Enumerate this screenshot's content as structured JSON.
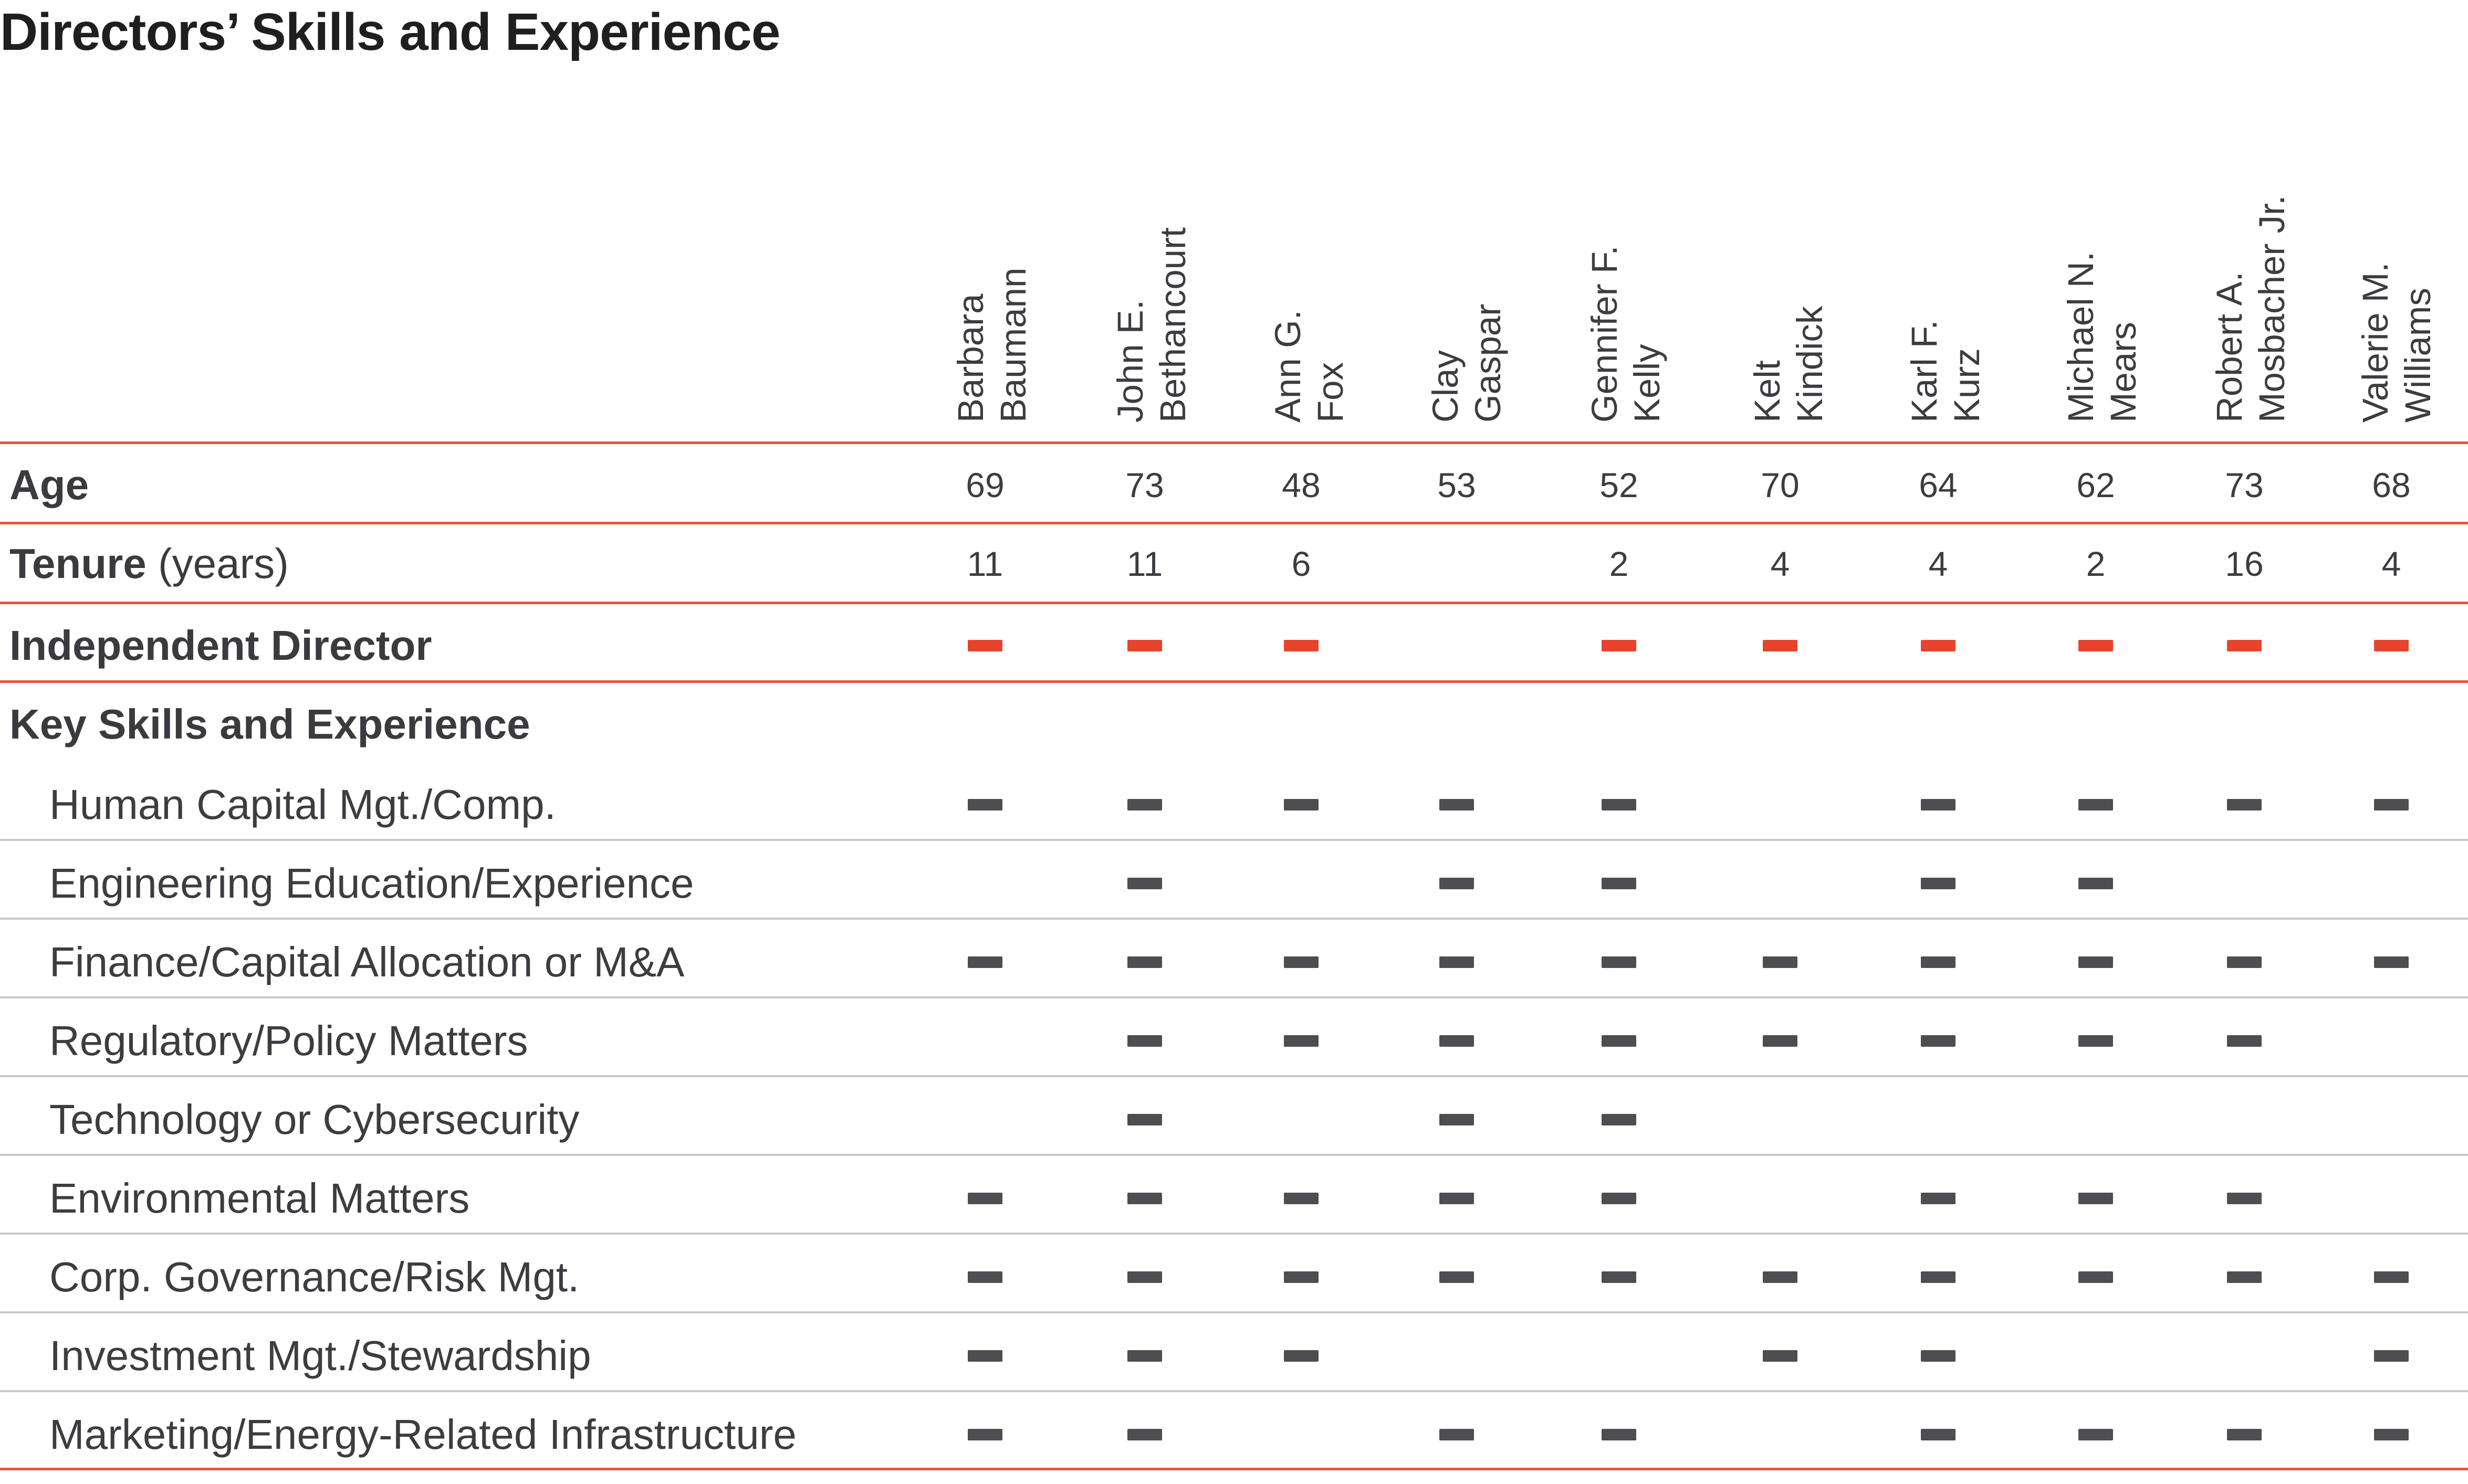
{
  "title": "Directors’ Skills and Experience",
  "directors": [
    {
      "first": "Barbara",
      "last": "Baumann",
      "age": "69",
      "tenure": "11",
      "independent": true
    },
    {
      "first": "John E.",
      "last": "Bethancourt",
      "age": "73",
      "tenure": "11",
      "independent": true
    },
    {
      "first": "Ann G.",
      "last": "Fox",
      "age": "48",
      "tenure": "6",
      "independent": true
    },
    {
      "first": "Clay",
      "last": "Gaspar",
      "age": "53",
      "tenure": "",
      "independent": false
    },
    {
      "first": "Gennifer F.",
      "last": "Kelly",
      "age": "52",
      "tenure": "2",
      "independent": true
    },
    {
      "first": "Kelt",
      "last": "Kindick",
      "age": "70",
      "tenure": "4",
      "independent": true
    },
    {
      "first": "Karl F.",
      "last": "Kurz",
      "age": "64",
      "tenure": "4",
      "independent": true
    },
    {
      "first": "Michael N.",
      "last": "Mears",
      "age": "62",
      "tenure": "2",
      "independent": true
    },
    {
      "first": "Robert A.",
      "last": "Mosbacher Jr.",
      "age": "73",
      "tenure": "16",
      "independent": true
    },
    {
      "first": "Valerie M.",
      "last": "Williams",
      "age": "68",
      "tenure": "4",
      "independent": true
    }
  ],
  "rows": {
    "age_label": "Age",
    "tenure_label": "Tenure",
    "tenure_suffix": "(years)",
    "independent_label": "Independent Director",
    "skills_heading": "Key Skills and Experience"
  },
  "skills": [
    {
      "label": "Human Capital Mgt./Comp.",
      "marks": [
        1,
        1,
        1,
        1,
        1,
        0,
        1,
        1,
        1,
        1
      ]
    },
    {
      "label": "Engineering Education/Experience",
      "marks": [
        0,
        1,
        0,
        1,
        1,
        0,
        1,
        1,
        0,
        0
      ]
    },
    {
      "label": "Finance/Capital Allocation or M&A",
      "marks": [
        1,
        1,
        1,
        1,
        1,
        1,
        1,
        1,
        1,
        1
      ]
    },
    {
      "label": "Regulatory/Policy Matters",
      "marks": [
        0,
        1,
        1,
        1,
        1,
        1,
        1,
        1,
        1,
        0
      ]
    },
    {
      "label": "Technology or Cybersecurity",
      "marks": [
        0,
        1,
        0,
        1,
        1,
        0,
        0,
        0,
        0,
        0
      ]
    },
    {
      "label": "Environmental Matters",
      "marks": [
        1,
        1,
        1,
        1,
        1,
        0,
        1,
        1,
        1,
        0
      ]
    },
    {
      "label": "Corp. Governance/Risk Mgt.",
      "marks": [
        1,
        1,
        1,
        1,
        1,
        1,
        1,
        1,
        1,
        1
      ]
    },
    {
      "label": "Investment Mgt./Stewardship",
      "marks": [
        1,
        1,
        1,
        0,
        0,
        1,
        1,
        0,
        0,
        1
      ]
    },
    {
      "label": "Marketing/Energy-Related Infrastructure",
      "marks": [
        1,
        1,
        0,
        1,
        1,
        0,
        1,
        1,
        1,
        1
      ]
    }
  ],
  "colors": {
    "accent": "#e8432d",
    "mark": "#4d4d52",
    "rule_accent": "#e8553f",
    "rule_grey": "#c9c9cc"
  }
}
